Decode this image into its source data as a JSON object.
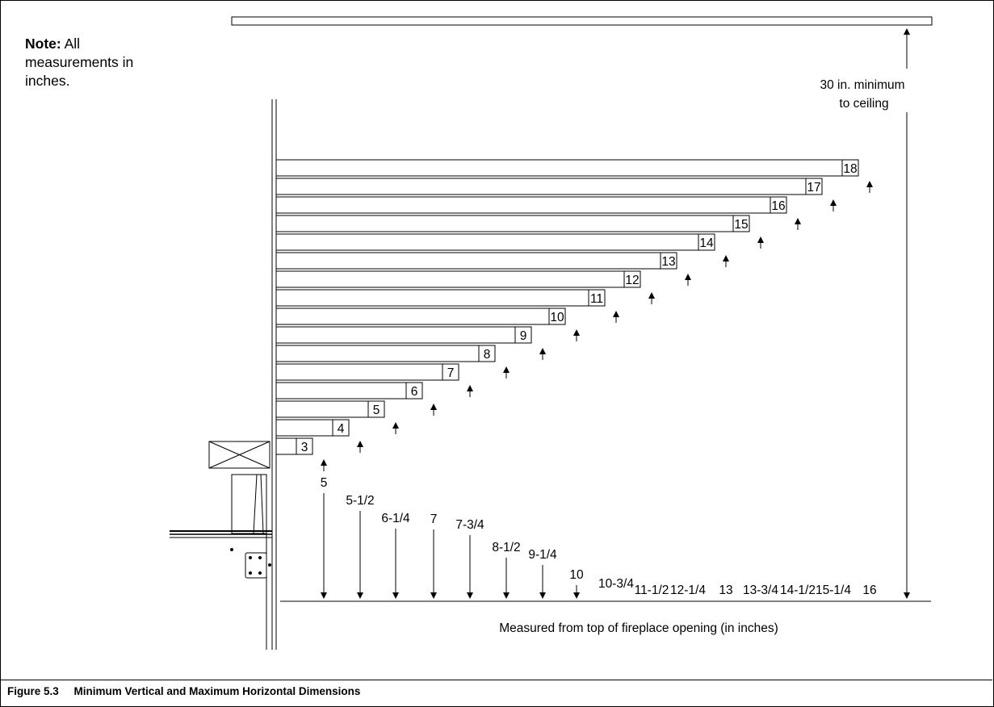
{
  "note": {
    "bold": "Note:",
    "text": " All measurements in inches."
  },
  "ceiling_label": [
    "30 in. minimum",
    "to ceiling"
  ],
  "base_label": "Measured from top of fireplace opening (in inches)",
  "caption": {
    "figure": "Figure 5.3",
    "title": "Minimum Vertical and Maximum Horizontal Dimensions"
  },
  "mantels": [
    {
      "depth": "3",
      "min_height": "5"
    },
    {
      "depth": "4",
      "min_height": "5-1/2"
    },
    {
      "depth": "5",
      "min_height": "6-1/4"
    },
    {
      "depth": "6",
      "min_height": "7"
    },
    {
      "depth": "7",
      "min_height": "7-3/4"
    },
    {
      "depth": "8",
      "min_height": "8-1/2"
    },
    {
      "depth": "9",
      "min_height": "9-1/4"
    },
    {
      "depth": "10",
      "min_height": "10"
    },
    {
      "depth": "11",
      "min_height": "10-3/4"
    },
    {
      "depth": "12",
      "min_height": "11-1/2"
    },
    {
      "depth": "13",
      "min_height": "12-1/4"
    },
    {
      "depth": "14",
      "min_height": "13"
    },
    {
      "depth": "15",
      "min_height": "13-3/4"
    },
    {
      "depth": "16",
      "min_height": "14-1/2"
    },
    {
      "depth": "17",
      "min_height": "15-1/4"
    },
    {
      "depth": "18",
      "min_height": "16"
    }
  ]
}
